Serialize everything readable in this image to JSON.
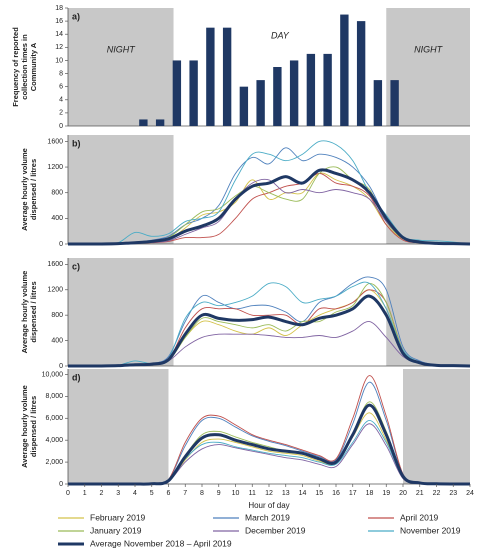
{
  "chart_data": [
    {
      "type": "bar",
      "label": "a)",
      "ylabel": [
        "Frequency of reported",
        "collection times in",
        "Community A"
      ],
      "annotations": [
        "NIGHT",
        "DAY",
        "NIGHT"
      ],
      "x": [
        4,
        5,
        6,
        7,
        8,
        9,
        10,
        11,
        12,
        13,
        14,
        15,
        16,
        17,
        18,
        19
      ],
      "values": [
        1,
        1,
        10,
        10,
        15,
        15,
        6,
        7,
        9,
        10,
        11,
        11,
        17,
        16,
        7,
        7
      ],
      "color": "#1f3864",
      "night_spans": [
        [
          0,
          6.3
        ],
        [
          19,
          24
        ]
      ],
      "xlim": [
        0,
        24
      ],
      "ylim": [
        0,
        18
      ],
      "yticks": [
        0,
        2,
        4,
        6,
        8,
        10,
        12,
        14,
        16,
        18
      ]
    },
    {
      "type": "line",
      "label": "b)",
      "ylabel": [
        "Average hourly volume",
        "dispensed / litres"
      ],
      "night_spans": [
        [
          0,
          6.3
        ],
        [
          19,
          24
        ]
      ],
      "x": [
        0,
        1,
        2,
        3,
        4,
        5,
        6,
        7,
        8,
        9,
        10,
        11,
        12,
        13,
        14,
        15,
        16,
        17,
        18,
        19,
        20,
        21,
        22,
        23,
        24
      ],
      "xlim": [
        0,
        24
      ],
      "ylim": [
        0,
        1700
      ],
      "yticks": [
        0,
        400,
        800,
        1200,
        1600
      ],
      "series": [
        {
          "color": "#d4c24a",
          "values": [
            0,
            0,
            0,
            5,
            15,
            30,
            60,
            250,
            450,
            500,
            650,
            1000,
            700,
            800,
            800,
            1100,
            1000,
            900,
            700,
            300,
            80,
            20,
            10,
            5,
            0
          ]
        },
        {
          "color": "#4f81bd",
          "values": [
            0,
            0,
            0,
            10,
            30,
            60,
            120,
            300,
            400,
            600,
            1100,
            1350,
            1250,
            1500,
            1300,
            1400,
            1350,
            1200,
            900,
            400,
            100,
            40,
            20,
            10,
            0
          ]
        },
        {
          "color": "#c0504d",
          "values": [
            0,
            0,
            0,
            3,
            10,
            20,
            40,
            100,
            100,
            150,
            400,
            700,
            800,
            900,
            950,
            1100,
            950,
            900,
            750,
            300,
            60,
            20,
            10,
            5,
            0
          ]
        },
        {
          "color": "#9bbb59",
          "values": [
            0,
            0,
            0,
            5,
            20,
            40,
            100,
            300,
            500,
            550,
            750,
            900,
            800,
            700,
            700,
            1100,
            1200,
            1000,
            850,
            350,
            90,
            30,
            10,
            5,
            0
          ]
        },
        {
          "color": "#8064a2",
          "values": [
            0,
            0,
            0,
            5,
            15,
            25,
            50,
            150,
            250,
            350,
            700,
            950,
            1000,
            800,
            850,
            800,
            850,
            800,
            700,
            350,
            90,
            30,
            10,
            5,
            0
          ]
        },
        {
          "color": "#4bacc6",
          "values": [
            0,
            0,
            0,
            20,
            180,
            120,
            160,
            350,
            400,
            500,
            1000,
            1400,
            1400,
            1300,
            1400,
            1600,
            1550,
            1300,
            800,
            450,
            120,
            60,
            50,
            30,
            0
          ]
        },
        {
          "color": "#1f3864",
          "values": [
            0,
            0,
            0,
            5,
            20,
            40,
            80,
            200,
            280,
            400,
            700,
            900,
            950,
            1050,
            950,
            1150,
            1100,
            1000,
            800,
            400,
            100,
            30,
            10,
            5,
            0
          ]
        }
      ]
    },
    {
      "type": "line",
      "label": "c)",
      "ylabel": [
        "Average hourly volume",
        "dispensed / litres"
      ],
      "night_spans": [
        [
          0,
          6.3
        ],
        [
          19,
          24
        ]
      ],
      "x": [
        0,
        1,
        2,
        3,
        4,
        5,
        6,
        7,
        8,
        9,
        10,
        11,
        12,
        13,
        14,
        15,
        16,
        17,
        18,
        19,
        20,
        21,
        22,
        23,
        24
      ],
      "xlim": [
        0,
        24
      ],
      "ylim": [
        0,
        1700
      ],
      "yticks": [
        0,
        400,
        800,
        1200,
        1600
      ],
      "series": [
        {
          "color": "#d4c24a",
          "values": [
            0,
            0,
            0,
            5,
            20,
            30,
            80,
            450,
            700,
            650,
            550,
            500,
            600,
            480,
            650,
            800,
            900,
            1000,
            1200,
            900,
            250,
            60,
            20,
            5,
            0
          ]
        },
        {
          "color": "#4f81bd",
          "values": [
            0,
            0,
            0,
            10,
            30,
            40,
            150,
            700,
            1100,
            1000,
            900,
            950,
            950,
            850,
            700,
            1000,
            1100,
            1300,
            1400,
            1200,
            300,
            80,
            20,
            5,
            0
          ]
        },
        {
          "color": "#c0504d",
          "values": [
            0,
            0,
            0,
            5,
            20,
            30,
            100,
            600,
            900,
            900,
            900,
            800,
            800,
            800,
            650,
            900,
            900,
            1000,
            1200,
            1000,
            250,
            50,
            10,
            5,
            0
          ]
        },
        {
          "color": "#9bbb59",
          "values": [
            0,
            0,
            0,
            5,
            20,
            30,
            80,
            450,
            750,
            700,
            650,
            600,
            650,
            550,
            700,
            700,
            850,
            950,
            1300,
            1000,
            250,
            60,
            20,
            5,
            0
          ]
        },
        {
          "color": "#8064a2",
          "values": [
            0,
            0,
            0,
            5,
            20,
            30,
            80,
            300,
            450,
            500,
            500,
            500,
            480,
            450,
            450,
            480,
            450,
            550,
            700,
            450,
            150,
            40,
            10,
            5,
            0
          ]
        },
        {
          "color": "#4bacc6",
          "values": [
            0,
            0,
            0,
            10,
            80,
            40,
            120,
            750,
            1000,
            950,
            1000,
            1100,
            1300,
            1250,
            1000,
            1050,
            1100,
            1250,
            1300,
            900,
            250,
            60,
            20,
            5,
            0
          ]
        },
        {
          "color": "#1f3864",
          "values": [
            0,
            0,
            0,
            5,
            20,
            30,
            100,
            500,
            800,
            750,
            720,
            730,
            770,
            700,
            650,
            750,
            800,
            900,
            1100,
            800,
            200,
            50,
            10,
            5,
            0
          ]
        }
      ]
    },
    {
      "type": "line",
      "label": "d)",
      "ylabel": [
        "Average hourly volume",
        "dispensed / litres"
      ],
      "xlabel": "Hour of day",
      "legend": "bottom",
      "night_spans": [
        [
          0,
          6
        ],
        [
          20,
          24
        ]
      ],
      "x": [
        0,
        1,
        2,
        3,
        4,
        5,
        6,
        7,
        8,
        9,
        10,
        11,
        12,
        13,
        14,
        15,
        16,
        17,
        18,
        19,
        20,
        21,
        22,
        23,
        24
      ],
      "xlim": [
        0,
        24
      ],
      "xticks": [
        0,
        1,
        2,
        3,
        4,
        5,
        6,
        7,
        8,
        9,
        10,
        11,
        12,
        13,
        14,
        15,
        16,
        17,
        18,
        19,
        20,
        21,
        22,
        23,
        24
      ],
      "ylim": [
        0,
        10500
      ],
      "yticks": [
        0,
        {
          "value": 2000,
          "label": "2,000"
        },
        {
          "value": 4000,
          "label": "4,000"
        },
        {
          "value": 6000,
          "label": "6,000"
        },
        {
          "value": 8000,
          "label": "8,000"
        },
        {
          "value": 10000,
          "label": "10,000"
        }
      ],
      "series": [
        {
          "name": "February 2019",
          "color": "#d4c24a",
          "values": [
            0,
            0,
            0,
            0,
            0,
            20,
            300,
            2200,
            3800,
            4100,
            3800,
            3400,
            3000,
            2800,
            2600,
            2100,
            1900,
            4300,
            6500,
            4000,
            600,
            100,
            20,
            0,
            0
          ]
        },
        {
          "name": "March 2019",
          "color": "#4f81bd",
          "values": [
            0,
            0,
            0,
            0,
            0,
            30,
            400,
            3500,
            5800,
            6000,
            5200,
            4400,
            3900,
            3500,
            3000,
            2500,
            2200,
            5500,
            9300,
            5800,
            900,
            150,
            30,
            0,
            0
          ]
        },
        {
          "name": "April 2019",
          "color": "#c0504d",
          "values": [
            0,
            0,
            0,
            0,
            0,
            30,
            400,
            3800,
            6000,
            6200,
            5400,
            4500,
            4000,
            3600,
            3100,
            2600,
            2300,
            6000,
            9900,
            6200,
            900,
            150,
            30,
            0,
            0
          ]
        },
        {
          "name": "January 2019",
          "color": "#9bbb59",
          "values": [
            0,
            0,
            0,
            0,
            0,
            20,
            300,
            2600,
            4500,
            4800,
            4300,
            3800,
            3400,
            3000,
            2800,
            2300,
            2000,
            4600,
            7500,
            4800,
            700,
            100,
            20,
            0,
            0
          ]
        },
        {
          "name": "December 2019",
          "color": "#8064a2",
          "values": [
            0,
            0,
            0,
            0,
            0,
            20,
            250,
            2000,
            3200,
            3600,
            3300,
            3000,
            2700,
            2400,
            2200,
            1800,
            1600,
            3600,
            5500,
            3500,
            500,
            80,
            20,
            0,
            0
          ]
        },
        {
          "name": "November 2019",
          "color": "#4bacc6",
          "values": [
            0,
            0,
            0,
            0,
            0,
            20,
            300,
            2300,
            3600,
            3800,
            3400,
            3100,
            2800,
            2600,
            2400,
            2000,
            1800,
            3800,
            5800,
            3800,
            600,
            100,
            20,
            0,
            0
          ]
        },
        {
          "name": "Average November 2018 – April 2019",
          "color": "#1f3864",
          "values": [
            0,
            0,
            0,
            0,
            0,
            20,
            300,
            2500,
            4200,
            4500,
            4000,
            3600,
            3200,
            3000,
            2800,
            2300,
            2000,
            4500,
            7200,
            4500,
            700,
            100,
            20,
            0,
            0
          ]
        }
      ]
    }
  ]
}
